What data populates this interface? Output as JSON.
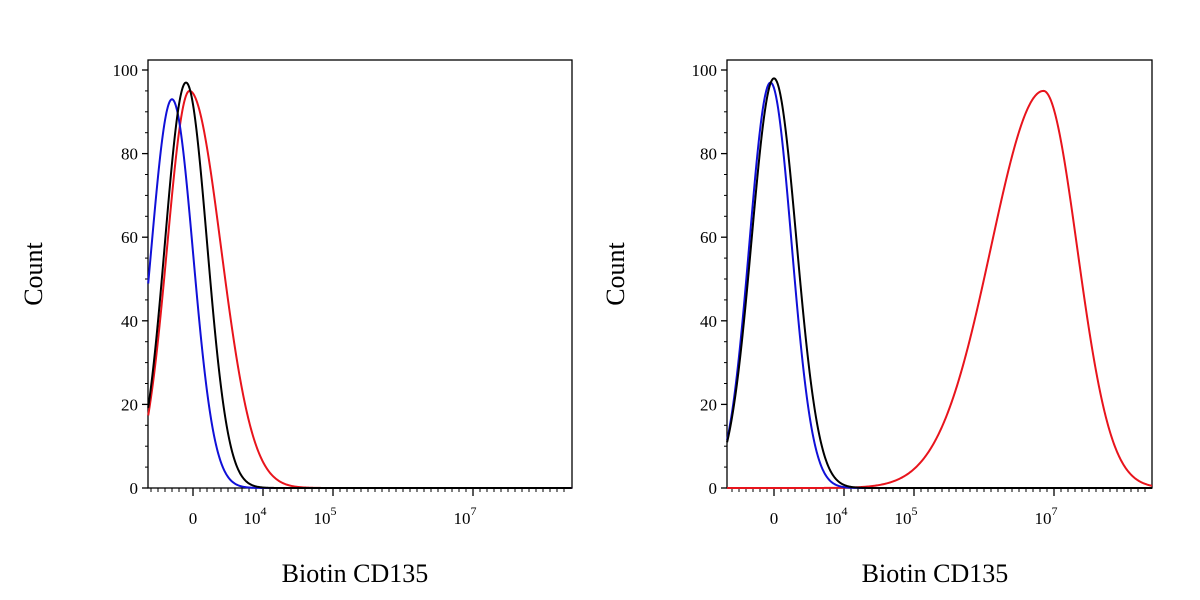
{
  "chart_data": [
    {
      "type": "line",
      "xlabel": "Biotin CD135",
      "ylabel": "Count",
      "ylim": [
        0,
        100
      ],
      "y_ticks": [
        "0",
        "20",
        "40",
        "60",
        "80",
        "100"
      ],
      "x_ticks": [
        {
          "base": "0",
          "exp": ""
        },
        {
          "base": "10",
          "exp": "4"
        },
        {
          "base": "10",
          "exp": "5"
        },
        {
          "base": "10",
          "exp": "7"
        }
      ],
      "grid": false,
      "legend": "none",
      "series": [
        {
          "color": "#e8141c",
          "peak": 95,
          "center": -0.05,
          "width_left": 0.32,
          "width_right": 0.45
        },
        {
          "color": "#1010d8",
          "peak": 93,
          "center": -0.3,
          "width_left": 0.3,
          "width_right": 0.3
        },
        {
          "color": "#000000",
          "peak": 97,
          "center": -0.1,
          "width_left": 0.3,
          "width_right": 0.3
        }
      ]
    },
    {
      "type": "line",
      "xlabel": "Biotin CD135",
      "ylabel": "Count",
      "ylim": [
        0,
        100
      ],
      "y_ticks": [
        "0",
        "20",
        "40",
        "60",
        "80",
        "100"
      ],
      "x_ticks": [
        {
          "base": "0",
          "exp": ""
        },
        {
          "base": "10",
          "exp": "4"
        },
        {
          "base": "10",
          "exp": "5"
        },
        {
          "base": "10",
          "exp": "7"
        }
      ],
      "grid": false,
      "legend": "none",
      "series": [
        {
          "color": "#e8141c",
          "peak": 95,
          "center": 3.85,
          "width_left": 0.75,
          "width_right": 0.48
        },
        {
          "color": "#1010d8",
          "peak": 97,
          "center": -0.05,
          "width_left": 0.3,
          "width_right": 0.3
        },
        {
          "color": "#000000",
          "peak": 98,
          "center": 0.0,
          "width_left": 0.32,
          "width_right": 0.32
        }
      ]
    }
  ]
}
